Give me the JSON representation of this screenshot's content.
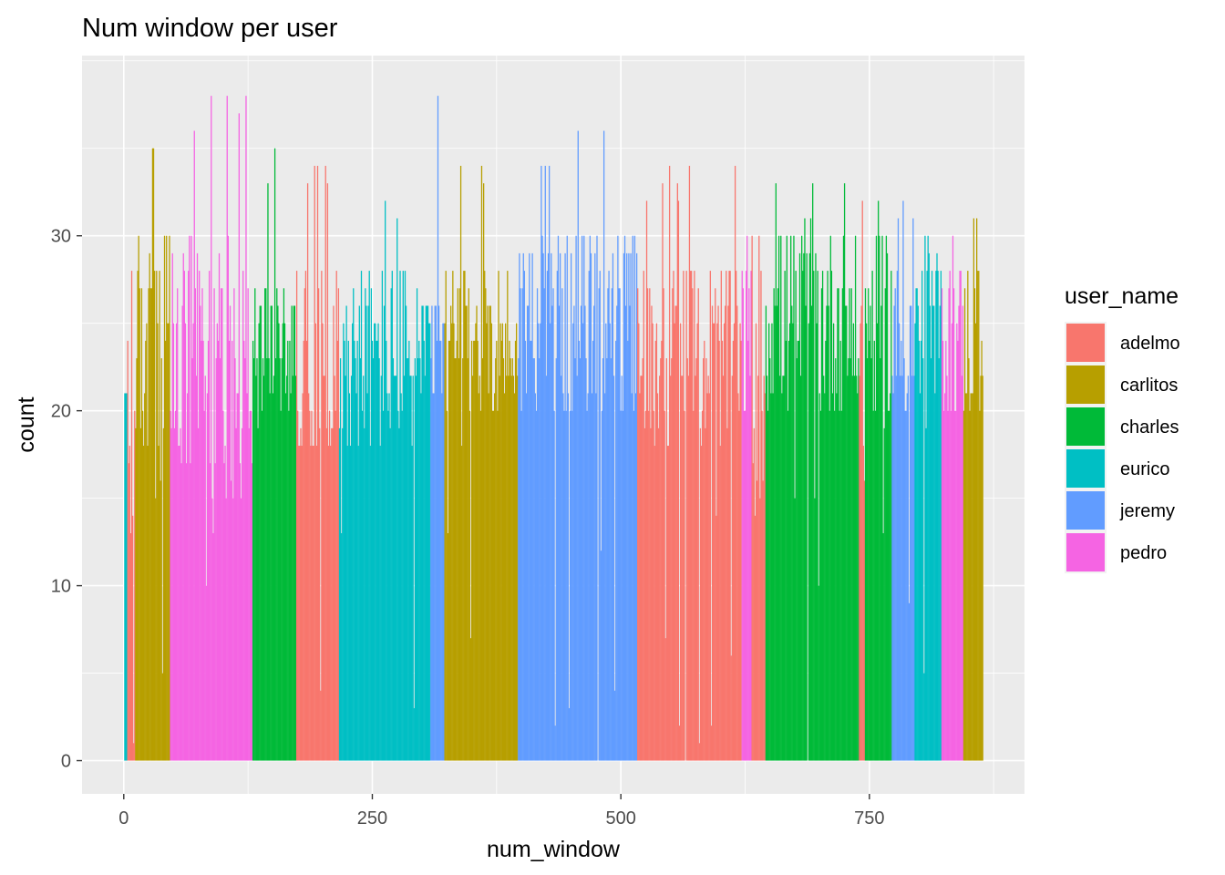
{
  "chart_data": {
    "type": "bar",
    "title": "Num window per user",
    "xlabel": "num_window",
    "ylabel": "count",
    "xlim": [
      -42,
      906
    ],
    "ylim": [
      -1.9,
      40.3
    ],
    "x_ticks": [
      0,
      250,
      500,
      750
    ],
    "x_tick_labels": [
      "0",
      "250",
      "500",
      "750"
    ],
    "y_ticks": [
      0,
      10,
      20,
      30
    ],
    "y_tick_labels": [
      "0",
      "10",
      "20",
      "30"
    ],
    "grid": true,
    "legend": {
      "title": "user_name",
      "position": "right",
      "entries": [
        {
          "name": "adelmo",
          "color": "#F8766D"
        },
        {
          "name": "carlitos",
          "color": "#B79F00"
        },
        {
          "name": "charles",
          "color": "#00BA38"
        },
        {
          "name": "eurico",
          "color": "#00BFC4"
        },
        {
          "name": "jeremy",
          "color": "#619CFF"
        },
        {
          "name": "pedro",
          "color": "#F564E3"
        }
      ]
    },
    "series": [
      {
        "name": "eurico",
        "ranges": [
          [
            1,
            3
          ]
        ],
        "typical": [
          20,
          21
        ],
        "peak": 21
      },
      {
        "name": "adelmo",
        "ranges": [
          [
            4,
            11
          ]
        ],
        "typical": [
          12,
          24
        ],
        "peak": 28
      },
      {
        "name": "carlitos",
        "ranges": [
          [
            12,
            46
          ]
        ],
        "typical": [
          17,
          30
        ],
        "peak": 35
      },
      {
        "name": "pedro",
        "ranges": [
          [
            47,
            129
          ]
        ],
        "typical": [
          15,
          30
        ],
        "peak": 38
      },
      {
        "name": "charles",
        "ranges": [
          [
            130,
            173
          ]
        ],
        "typical": [
          20,
          27
        ],
        "peak": 35
      },
      {
        "name": "adelmo",
        "ranges": [
          [
            174,
            216
          ]
        ],
        "typical": [
          18,
          28
        ],
        "peak": 34
      },
      {
        "name": "eurico",
        "ranges": [
          [
            217,
            308
          ]
        ],
        "typical": [
          18,
          28
        ],
        "peak": 32
      },
      {
        "name": "jeremy",
        "ranges": [
          [
            309,
            322
          ]
        ],
        "typical": [
          21,
          26
        ],
        "peak": 38
      },
      {
        "name": "carlitos",
        "ranges": [
          [
            323,
            396
          ]
        ],
        "typical": [
          20,
          28
        ],
        "peak": 34
      },
      {
        "name": "jeremy",
        "ranges": [
          [
            397,
            516
          ]
        ],
        "typical": [
          20,
          30
        ],
        "peak": 36
      },
      {
        "name": "adelmo",
        "ranges": [
          [
            517,
            621
          ]
        ],
        "typical": [
          18,
          28
        ],
        "peak": 34
      },
      {
        "name": "pedro",
        "ranges": [
          [
            622,
            631
          ]
        ],
        "typical": [
          20,
          28
        ],
        "peak": 30
      },
      {
        "name": "adelmo",
        "ranges": [
          [
            632,
            645
          ]
        ],
        "typical": [
          15,
          28
        ],
        "peak": 30
      },
      {
        "name": "charles",
        "ranges": [
          [
            646,
            739
          ]
        ],
        "typical": [
          20,
          30
        ],
        "peak": 33
      },
      {
        "name": "adelmo",
        "ranges": [
          [
            740,
            745
          ]
        ],
        "typical": [
          15,
          28
        ],
        "peak": 32
      },
      {
        "name": "charles",
        "ranges": [
          [
            746,
            772
          ]
        ],
        "typical": [
          20,
          30
        ],
        "peak": 32
      },
      {
        "name": "jeremy",
        "ranges": [
          [
            773,
            795
          ]
        ],
        "typical": [
          20,
          28
        ],
        "peak": 32
      },
      {
        "name": "eurico",
        "ranges": [
          [
            796,
            822
          ]
        ],
        "typical": [
          20,
          28
        ],
        "peak": 30
      },
      {
        "name": "pedro",
        "ranges": [
          [
            823,
            844
          ]
        ],
        "typical": [
          20,
          28
        ],
        "peak": 30
      },
      {
        "name": "carlitos",
        "ranges": [
          [
            845,
            864
          ]
        ],
        "typical": [
          20,
          28
        ],
        "peak": 31
      }
    ]
  }
}
